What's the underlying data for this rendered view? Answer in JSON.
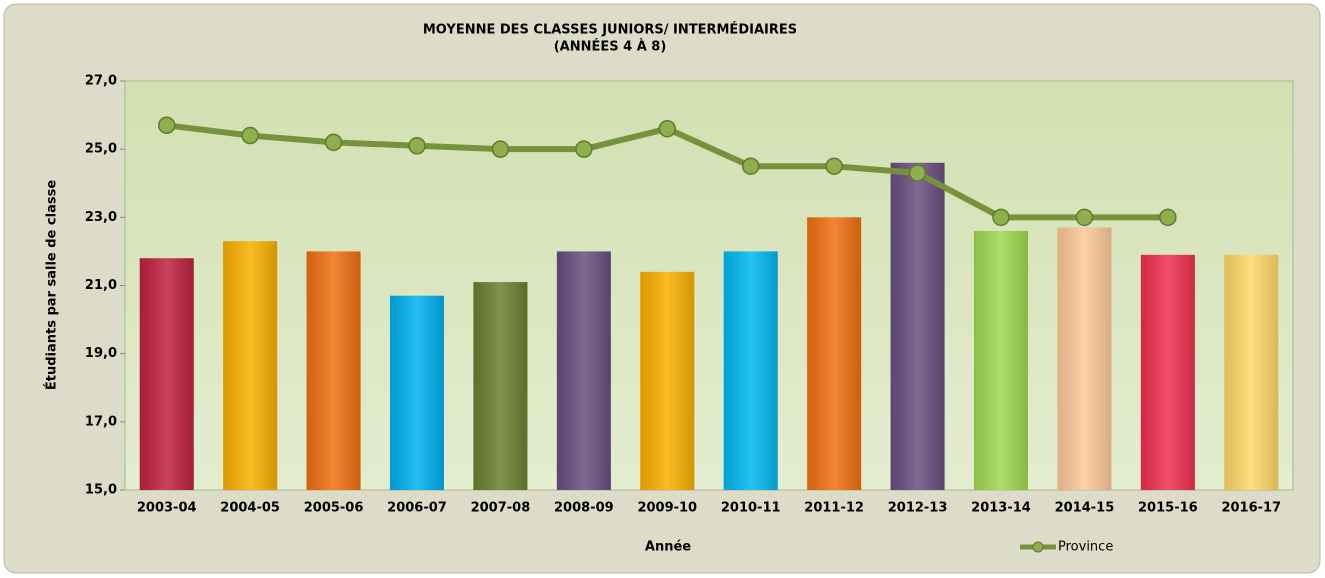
{
  "chart_data": {
    "type": "bar",
    "title": "MOYENNE DES CLASSES JUNIORS/ INTERMÉDIAIRES",
    "subtitle": "(ANNÉES 4 À 8)",
    "x_label": "Année",
    "y_label": "Étudiants par salle de classe",
    "categories": [
      "2003-04",
      "2004-05",
      "2005-06",
      "2006-07",
      "2007-08",
      "2008-09",
      "2009-10",
      "2010-11",
      "2011-12",
      "2012-13",
      "2013-14",
      "2014-15",
      "2015-16",
      "2016-17"
    ],
    "values": [
      21.8,
      22.3,
      22.0,
      20.7,
      21.1,
      22.0,
      21.4,
      22.0,
      23.0,
      24.6,
      22.6,
      22.7,
      21.9,
      21.9
    ],
    "colors": [
      "#c0213f",
      "#f9b000",
      "#f07010",
      "#00b0f0",
      "#6a8030",
      "#6a4e80",
      "#f9b000",
      "#00b8f0",
      "#f07010",
      "#6a4e80",
      "#a0d850",
      "#fdc898",
      "#f03050",
      "#ffd868"
    ],
    "series": [
      {
        "name": "Province",
        "type": "line",
        "color": "#76923c",
        "values": [
          25.7,
          25.4,
          25.2,
          25.1,
          25.0,
          25.0,
          25.6,
          24.5,
          24.5,
          24.3,
          23.0,
          23.0,
          23.0,
          null
        ]
      }
    ],
    "ylim": [
      15,
      27
    ],
    "yticks": [
      {
        "value": 15,
        "label": "15,0"
      },
      {
        "value": 17,
        "label": "17,0"
      },
      {
        "value": 19,
        "label": "19,0"
      },
      {
        "value": 21,
        "label": "21,0"
      },
      {
        "value": 23,
        "label": "23,0"
      },
      {
        "value": 25,
        "label": "25,0"
      },
      {
        "value": 27,
        "label": "27,0"
      }
    ],
    "legend": "bottom-right"
  }
}
